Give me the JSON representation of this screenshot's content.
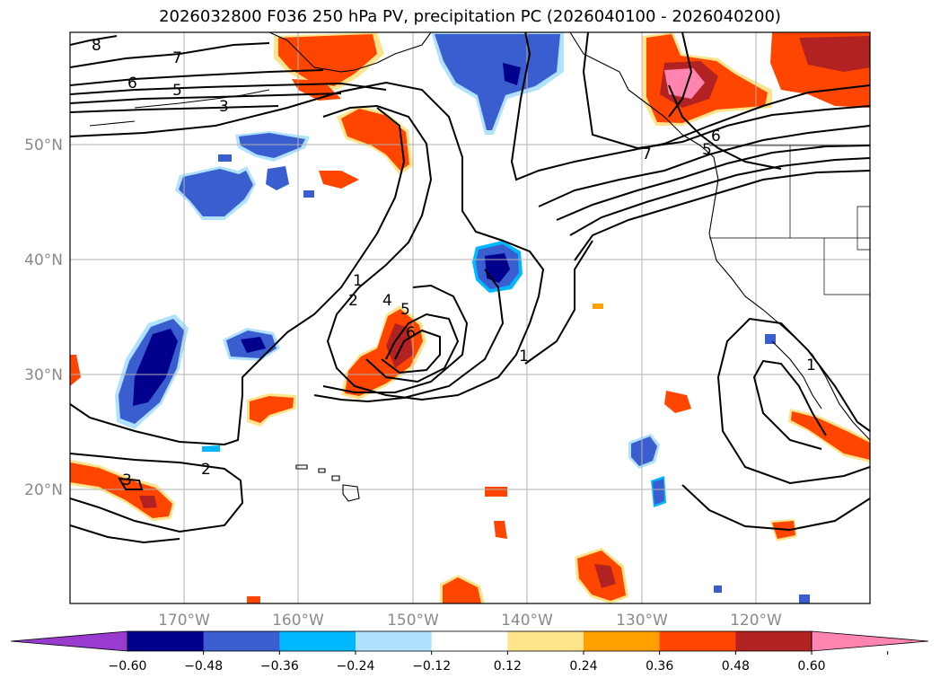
{
  "title": "2026032800 F036 250 hPa PV, precipitation PC (2026040100 - 2026040200)",
  "map_axes": {
    "lat_labels": [
      "50°N",
      "40°N",
      "30°N",
      "20°N"
    ],
    "lon_labels": [
      "170°W",
      "160°W",
      "150°W",
      "140°W",
      "130°W",
      "120°W"
    ]
  },
  "contour_labels": [
    "8",
    "7",
    "6",
    "5",
    "3",
    "1",
    "2",
    "4",
    "5",
    "6",
    "1",
    "7",
    "6",
    "5",
    "2",
    "3",
    "1"
  ],
  "colorbar": {
    "tick_labels": [
      "−0.60",
      "−0.48",
      "−0.36",
      "−0.24",
      "−0.12",
      "0.12",
      "0.24",
      "0.36",
      "0.48",
      "0.60"
    ],
    "colors": [
      "#9a3bd0",
      "#00008c",
      "#3a5ed0",
      "#00b8ff",
      "#b0e2ff",
      "#ffffff",
      "#ffe38a",
      "#ffa000",
      "#ff4500",
      "#b22222",
      "#ff85b0"
    ]
  }
}
